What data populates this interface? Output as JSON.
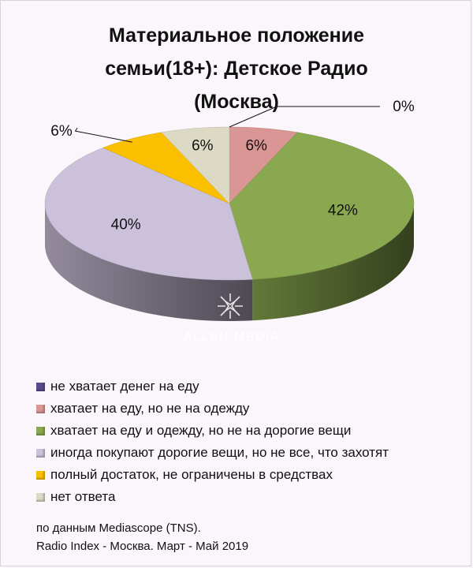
{
  "chart_data": {
    "type": "pie",
    "title_lines": [
      "Материальное положение",
      "семьи(18+): Детское Радио",
      "(Москва)"
    ],
    "categories": [
      "не хватает денег на еду",
      "хватает на еду, но не на одежду",
      "хватает на еду и одежду, но не на дорогие вещи",
      "иногда покупают дорогие вещи, но не все, что захотят",
      "полный достаток, не ограничены в средствах",
      "нет ответа"
    ],
    "values": [
      0,
      6,
      42,
      40,
      6,
      6
    ],
    "labels": [
      "0%",
      "6%",
      "42%",
      "40%",
      "6%",
      "6%"
    ],
    "colors": [
      "#5b4a8c",
      "#d99694",
      "#8aa84f",
      "#ccc1da",
      "#fac000",
      "#dcd9c5"
    ],
    "legend_position": "bottom"
  },
  "watermark": "ALLEN MEDIA",
  "source_lines": [
    "по данным Mediascope (TNS).",
    "Radio Index - Москва. Март - Май 2019"
  ]
}
